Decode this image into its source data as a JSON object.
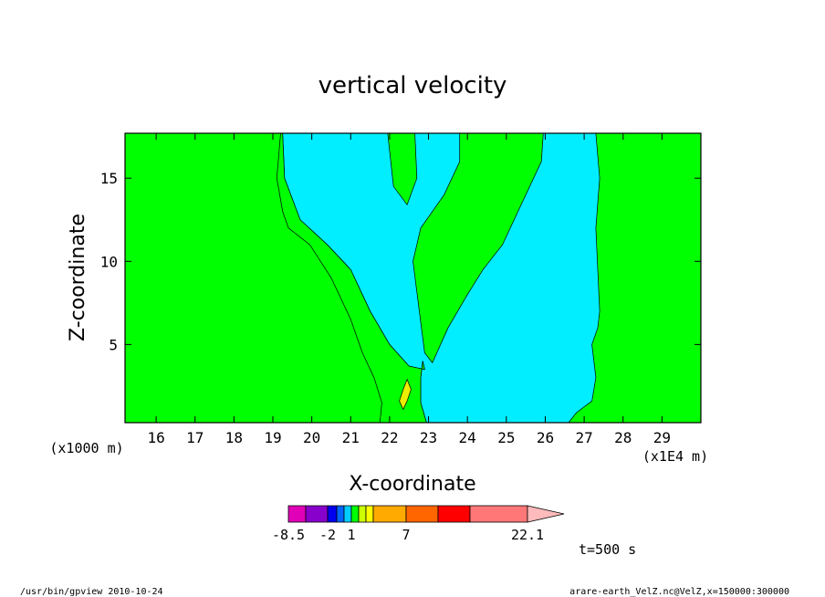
{
  "chart_data": {
    "type": "contour",
    "title": "vertical velocity",
    "xlabel": "X-coordinate",
    "ylabel": "Z-coordinate",
    "x_unit_label": "(x1E4 m)",
    "y_unit_label": "(x1000 m)",
    "xlim": [
      15.2,
      30.0
    ],
    "ylim": [
      0.3,
      17.7
    ],
    "x_ticks": [
      16,
      17,
      18,
      19,
      20,
      21,
      22,
      23,
      24,
      25,
      26,
      27,
      28,
      29
    ],
    "y_ticks": [
      5,
      10,
      15
    ],
    "regions": [
      {
        "level": "positive_1",
        "color": "#00ff00",
        "polygons": [
          [
            [
              15.2,
              0.3
            ],
            [
              30.0,
              0.3
            ],
            [
              30.0,
              17.7
            ],
            [
              15.2,
              17.7
            ]
          ]
        ]
      },
      {
        "level": "neutral",
        "color": "#00eeff",
        "polygons": [
          [
            [
              17.45,
              17.7
            ],
            [
              19.25,
              17.7
            ],
            [
              19.3,
              15.0
            ],
            [
              19.7,
              12.5
            ],
            [
              20.4,
              11.0
            ],
            [
              21.0,
              9.5
            ],
            [
              21.5,
              7.0
            ],
            [
              22.0,
              5.0
            ],
            [
              22.5,
              3.7
            ],
            [
              22.9,
              3.5
            ],
            [
              22.85,
              4.0
            ],
            [
              22.8,
              3.0
            ],
            [
              22.8,
              1.5
            ],
            [
              22.95,
              0.3
            ],
            [
              26.6,
              0.3
            ],
            [
              26.8,
              0.9
            ],
            [
              27.2,
              1.6
            ],
            [
              27.3,
              3.0
            ],
            [
              27.2,
              5.0
            ],
            [
              27.35,
              6.0
            ],
            [
              27.4,
              7.0
            ],
            [
              27.3,
              12.0
            ],
            [
              27.4,
              15.0
            ],
            [
              27.3,
              17.7
            ],
            [
              25.95,
              17.7
            ],
            [
              25.9,
              16.0
            ],
            [
              25.3,
              13.0
            ],
            [
              24.9,
              11.0
            ],
            [
              24.4,
              9.5
            ],
            [
              24.0,
              8.0
            ],
            [
              23.5,
              6.0
            ],
            [
              23.1,
              3.9
            ],
            [
              22.9,
              4.5
            ],
            [
              22.6,
              10.0
            ],
            [
              22.8,
              12.0
            ],
            [
              23.4,
              14.0
            ],
            [
              23.8,
              16.0
            ],
            [
              23.8,
              17.7
            ],
            [
              22.65,
              17.7
            ],
            [
              22.7,
              15.0
            ],
            [
              22.45,
              13.4
            ],
            [
              22.1,
              14.5
            ],
            [
              21.95,
              17.7
            ],
            [
              19.25,
              17.7
            ],
            [
              17.45,
              17.7
            ]
          ]
        ]
      },
      {
        "level": "positive_1",
        "color": "#00ff00",
        "polygons": [
          [
            [
              19.25,
              17.7
            ],
            [
              19.3,
              15.0
            ],
            [
              19.7,
              12.5
            ],
            [
              20.4,
              11.0
            ],
            [
              21.0,
              9.5
            ],
            [
              21.5,
              7.0
            ],
            [
              22.0,
              5.0
            ],
            [
              22.5,
              3.7
            ],
            [
              22.9,
              3.5
            ],
            [
              22.85,
              4.0
            ],
            [
              22.8,
              3.0
            ],
            [
              22.8,
              1.5
            ],
            [
              22.95,
              0.3
            ],
            [
              21.75,
              0.3
            ],
            [
              21.8,
              1.5
            ],
            [
              21.6,
              3.0
            ],
            [
              21.3,
              4.5
            ],
            [
              21.0,
              6.5
            ],
            [
              20.5,
              9.0
            ],
            [
              19.95,
              11.0
            ],
            [
              19.4,
              12.0
            ],
            [
              19.25,
              13.0
            ],
            [
              19.1,
              15.0
            ],
            [
              19.2,
              17.7
            ]
          ]
        ]
      },
      {
        "level": "positive_2",
        "color": "#eeee00",
        "polygons": [
          [
            [
              22.35,
              1.1
            ],
            [
              22.45,
              1.6
            ],
            [
              22.55,
              2.3
            ],
            [
              22.45,
              2.9
            ],
            [
              22.35,
              2.3
            ],
            [
              22.25,
              1.6
            ]
          ]
        ]
      }
    ],
    "colorbar": {
      "labels": [
        "-8.5",
        "-2",
        "1",
        "7",
        "22.1"
      ],
      "colors": [
        "#e000b8",
        "#8800cc",
        "#0000ee",
        "#0066ff",
        "#00ccff",
        "#00ff00",
        "#ccff00",
        "#ffff00",
        "#ffaa00",
        "#ff6600",
        "#ff0000",
        "#ff7777",
        "#ffbbbb"
      ]
    },
    "time_label": "t=500 s"
  },
  "footer": {
    "left": "/usr/bin/gpview   2010-10-24",
    "right": "arare-earth_VelZ.nc@VelZ,x=150000:300000"
  }
}
